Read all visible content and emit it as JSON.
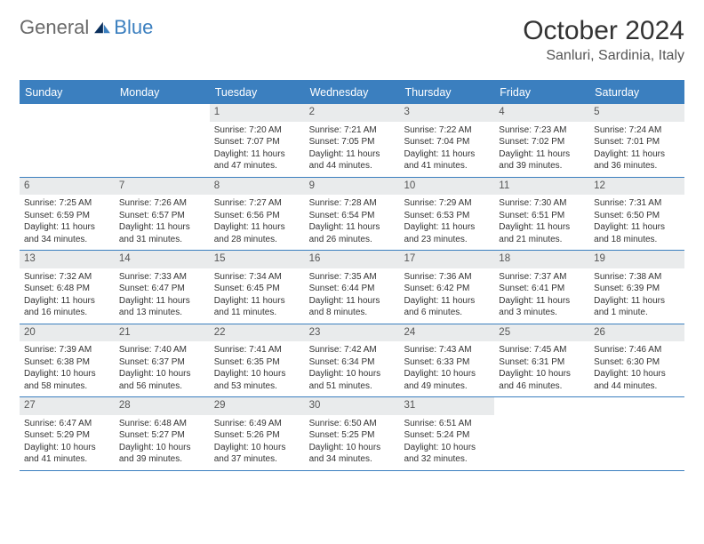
{
  "brand": {
    "part1": "General",
    "part2": "Blue"
  },
  "title": "October 2024",
  "location": "Sanluri, Sardinia, Italy",
  "colors": {
    "accent": "#3b7fbf",
    "header_bg": "#3b7fbf",
    "daynum_bg": "#e9ebec",
    "text": "#333333"
  },
  "day_names": [
    "Sunday",
    "Monday",
    "Tuesday",
    "Wednesday",
    "Thursday",
    "Friday",
    "Saturday"
  ],
  "weeks": [
    [
      {
        "n": "",
        "sr": "",
        "ss": "",
        "dl": ""
      },
      {
        "n": "",
        "sr": "",
        "ss": "",
        "dl": ""
      },
      {
        "n": "1",
        "sr": "Sunrise: 7:20 AM",
        "ss": "Sunset: 7:07 PM",
        "dl": "Daylight: 11 hours and 47 minutes."
      },
      {
        "n": "2",
        "sr": "Sunrise: 7:21 AM",
        "ss": "Sunset: 7:05 PM",
        "dl": "Daylight: 11 hours and 44 minutes."
      },
      {
        "n": "3",
        "sr": "Sunrise: 7:22 AM",
        "ss": "Sunset: 7:04 PM",
        "dl": "Daylight: 11 hours and 41 minutes."
      },
      {
        "n": "4",
        "sr": "Sunrise: 7:23 AM",
        "ss": "Sunset: 7:02 PM",
        "dl": "Daylight: 11 hours and 39 minutes."
      },
      {
        "n": "5",
        "sr": "Sunrise: 7:24 AM",
        "ss": "Sunset: 7:01 PM",
        "dl": "Daylight: 11 hours and 36 minutes."
      }
    ],
    [
      {
        "n": "6",
        "sr": "Sunrise: 7:25 AM",
        "ss": "Sunset: 6:59 PM",
        "dl": "Daylight: 11 hours and 34 minutes."
      },
      {
        "n": "7",
        "sr": "Sunrise: 7:26 AM",
        "ss": "Sunset: 6:57 PM",
        "dl": "Daylight: 11 hours and 31 minutes."
      },
      {
        "n": "8",
        "sr": "Sunrise: 7:27 AM",
        "ss": "Sunset: 6:56 PM",
        "dl": "Daylight: 11 hours and 28 minutes."
      },
      {
        "n": "9",
        "sr": "Sunrise: 7:28 AM",
        "ss": "Sunset: 6:54 PM",
        "dl": "Daylight: 11 hours and 26 minutes."
      },
      {
        "n": "10",
        "sr": "Sunrise: 7:29 AM",
        "ss": "Sunset: 6:53 PM",
        "dl": "Daylight: 11 hours and 23 minutes."
      },
      {
        "n": "11",
        "sr": "Sunrise: 7:30 AM",
        "ss": "Sunset: 6:51 PM",
        "dl": "Daylight: 11 hours and 21 minutes."
      },
      {
        "n": "12",
        "sr": "Sunrise: 7:31 AM",
        "ss": "Sunset: 6:50 PM",
        "dl": "Daylight: 11 hours and 18 minutes."
      }
    ],
    [
      {
        "n": "13",
        "sr": "Sunrise: 7:32 AM",
        "ss": "Sunset: 6:48 PM",
        "dl": "Daylight: 11 hours and 16 minutes."
      },
      {
        "n": "14",
        "sr": "Sunrise: 7:33 AM",
        "ss": "Sunset: 6:47 PM",
        "dl": "Daylight: 11 hours and 13 minutes."
      },
      {
        "n": "15",
        "sr": "Sunrise: 7:34 AM",
        "ss": "Sunset: 6:45 PM",
        "dl": "Daylight: 11 hours and 11 minutes."
      },
      {
        "n": "16",
        "sr": "Sunrise: 7:35 AM",
        "ss": "Sunset: 6:44 PM",
        "dl": "Daylight: 11 hours and 8 minutes."
      },
      {
        "n": "17",
        "sr": "Sunrise: 7:36 AM",
        "ss": "Sunset: 6:42 PM",
        "dl": "Daylight: 11 hours and 6 minutes."
      },
      {
        "n": "18",
        "sr": "Sunrise: 7:37 AM",
        "ss": "Sunset: 6:41 PM",
        "dl": "Daylight: 11 hours and 3 minutes."
      },
      {
        "n": "19",
        "sr": "Sunrise: 7:38 AM",
        "ss": "Sunset: 6:39 PM",
        "dl": "Daylight: 11 hours and 1 minute."
      }
    ],
    [
      {
        "n": "20",
        "sr": "Sunrise: 7:39 AM",
        "ss": "Sunset: 6:38 PM",
        "dl": "Daylight: 10 hours and 58 minutes."
      },
      {
        "n": "21",
        "sr": "Sunrise: 7:40 AM",
        "ss": "Sunset: 6:37 PM",
        "dl": "Daylight: 10 hours and 56 minutes."
      },
      {
        "n": "22",
        "sr": "Sunrise: 7:41 AM",
        "ss": "Sunset: 6:35 PM",
        "dl": "Daylight: 10 hours and 53 minutes."
      },
      {
        "n": "23",
        "sr": "Sunrise: 7:42 AM",
        "ss": "Sunset: 6:34 PM",
        "dl": "Daylight: 10 hours and 51 minutes."
      },
      {
        "n": "24",
        "sr": "Sunrise: 7:43 AM",
        "ss": "Sunset: 6:33 PM",
        "dl": "Daylight: 10 hours and 49 minutes."
      },
      {
        "n": "25",
        "sr": "Sunrise: 7:45 AM",
        "ss": "Sunset: 6:31 PM",
        "dl": "Daylight: 10 hours and 46 minutes."
      },
      {
        "n": "26",
        "sr": "Sunrise: 7:46 AM",
        "ss": "Sunset: 6:30 PM",
        "dl": "Daylight: 10 hours and 44 minutes."
      }
    ],
    [
      {
        "n": "27",
        "sr": "Sunrise: 6:47 AM",
        "ss": "Sunset: 5:29 PM",
        "dl": "Daylight: 10 hours and 41 minutes."
      },
      {
        "n": "28",
        "sr": "Sunrise: 6:48 AM",
        "ss": "Sunset: 5:27 PM",
        "dl": "Daylight: 10 hours and 39 minutes."
      },
      {
        "n": "29",
        "sr": "Sunrise: 6:49 AM",
        "ss": "Sunset: 5:26 PM",
        "dl": "Daylight: 10 hours and 37 minutes."
      },
      {
        "n": "30",
        "sr": "Sunrise: 6:50 AM",
        "ss": "Sunset: 5:25 PM",
        "dl": "Daylight: 10 hours and 34 minutes."
      },
      {
        "n": "31",
        "sr": "Sunrise: 6:51 AM",
        "ss": "Sunset: 5:24 PM",
        "dl": "Daylight: 10 hours and 32 minutes."
      },
      {
        "n": "",
        "sr": "",
        "ss": "",
        "dl": ""
      },
      {
        "n": "",
        "sr": "",
        "ss": "",
        "dl": ""
      }
    ]
  ]
}
